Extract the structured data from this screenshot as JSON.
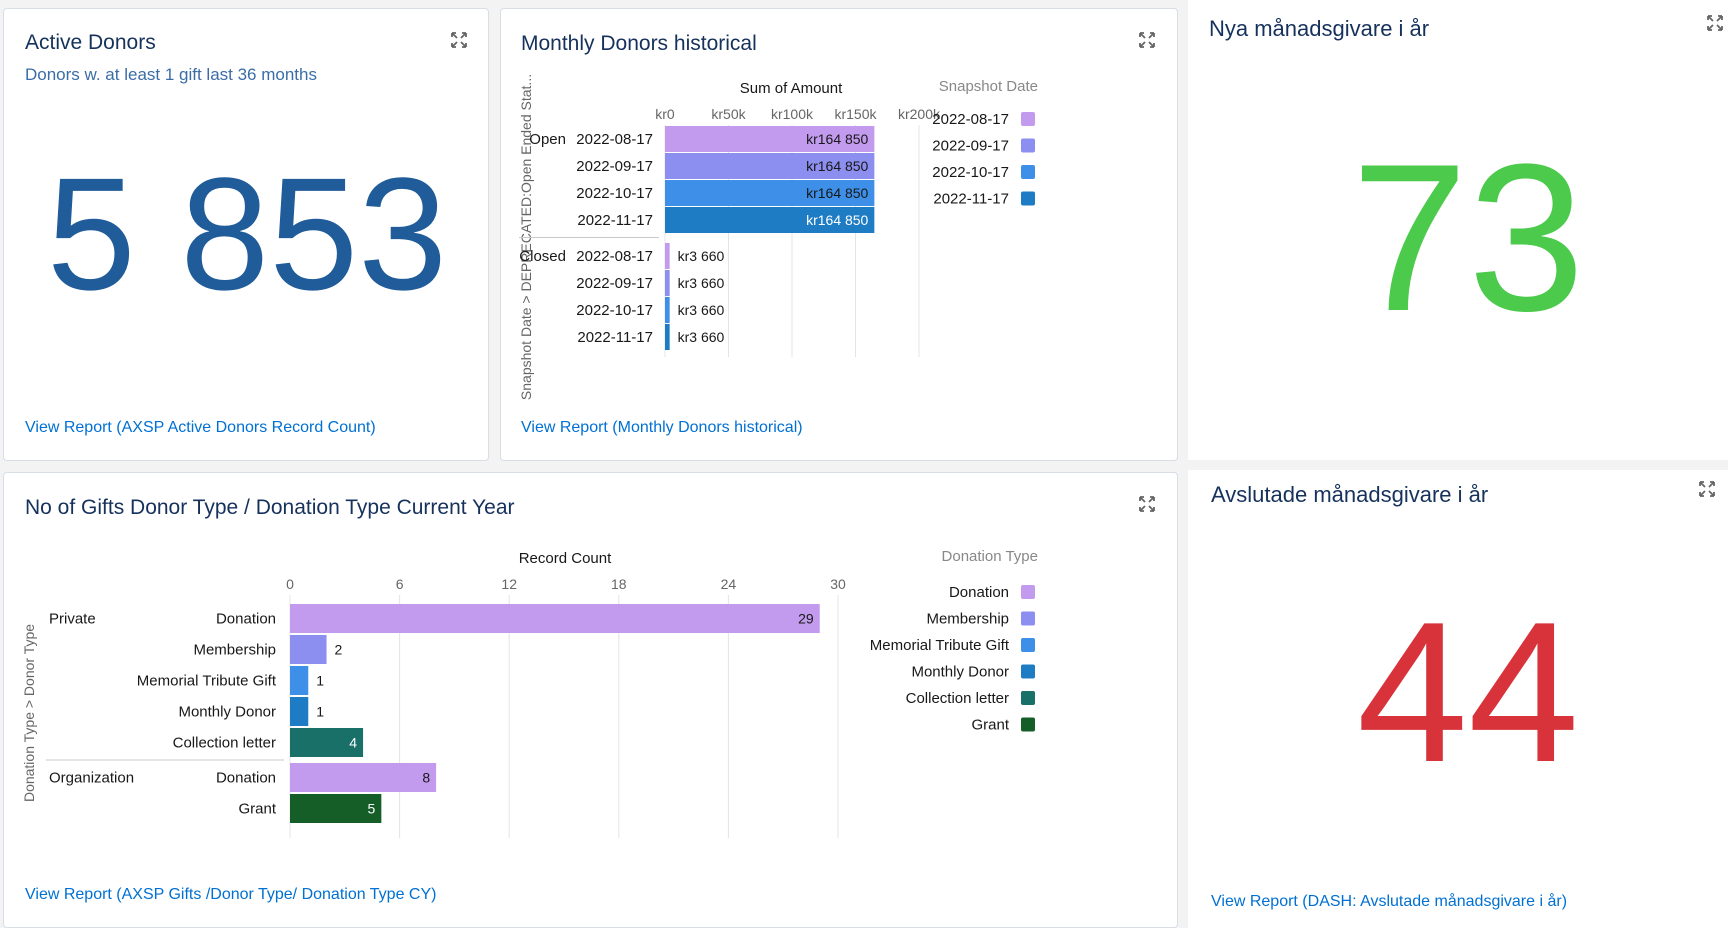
{
  "widgets": {
    "active_donors": {
      "title": "Active Donors",
      "subtitle": "Donors w. at least 1 gift last 36 months",
      "value": "5 853",
      "value_color": "#1f5c99",
      "link": "View Report (AXSP Active Donors Record Count)"
    },
    "monthly_donors": {
      "title": "Monthly Donors historical",
      "link": "View Report (Monthly Donors historical)"
    },
    "nya": {
      "title": "Nya månadsgivare i år",
      "value": "73",
      "value_color": "#4bca4b"
    },
    "gifts": {
      "title": "No of Gifts Donor Type / Donation Type Current Year",
      "link": "View Report (AXSP Gifts /Donor Type/ Donation Type CY)"
    },
    "avslutade": {
      "title": "Avslutade månadsgivare i år",
      "value": "44",
      "value_color": "#d8333a",
      "link": "View Report (DASH: Avslutade månadsgivare i år)"
    }
  },
  "chart_data": [
    {
      "id": "monthly_donors",
      "type": "bar",
      "orientation": "horizontal",
      "xlabel": "Sum of Amount",
      "ylabel": "Snapshot Date > DEPRECATED:Open Ended Stat...",
      "xticks": [
        "kr0",
        "kr50k",
        "kr100k",
        "kr150k",
        "kr200k"
      ],
      "xlim": [
        0,
        200000
      ],
      "legend_title": "Snapshot Date",
      "legend_position": "right",
      "legend": [
        {
          "label": "2022-08-17",
          "color": "#c39bee"
        },
        {
          "label": "2022-09-17",
          "color": "#8c8ff0"
        },
        {
          "label": "2022-10-17",
          "color": "#3d8fe8"
        },
        {
          "label": "2022-11-17",
          "color": "#1e7cc4"
        }
      ],
      "groups": [
        {
          "name": "Open",
          "bars": [
            {
              "label": "2022-08-17",
              "value": 164850,
              "display": "kr164 850",
              "color": "#c39bee"
            },
            {
              "label": "2022-09-17",
              "value": 164850,
              "display": "kr164 850",
              "color": "#8c8ff0"
            },
            {
              "label": "2022-10-17",
              "value": 164850,
              "display": "kr164 850",
              "color": "#3d8fe8"
            },
            {
              "label": "2022-11-17",
              "value": 164850,
              "display": "kr164 850",
              "color": "#1e7cc4"
            }
          ]
        },
        {
          "name": "Closed",
          "bars": [
            {
              "label": "2022-08-17",
              "value": 3660,
              "display": "kr3 660",
              "color": "#c39bee"
            },
            {
              "label": "2022-09-17",
              "value": 3660,
              "display": "kr3 660",
              "color": "#8c8ff0"
            },
            {
              "label": "2022-10-17",
              "value": 3660,
              "display": "kr3 660",
              "color": "#3d8fe8"
            },
            {
              "label": "2022-11-17",
              "value": 3660,
              "display": "kr3 660",
              "color": "#1e7cc4"
            }
          ]
        }
      ]
    },
    {
      "id": "gifts",
      "type": "bar",
      "orientation": "horizontal",
      "xlabel": "Record Count",
      "ylabel": "Donation Type > Donor Type",
      "xticks": [
        "0",
        "6",
        "12",
        "18",
        "24",
        "30"
      ],
      "xlim": [
        0,
        30
      ],
      "legend_title": "Donation Type",
      "legend_position": "right",
      "legend": [
        {
          "label": "Donation",
          "color": "#c39bee"
        },
        {
          "label": "Membership",
          "color": "#8c8ff0"
        },
        {
          "label": "Memorial Tribute Gift",
          "color": "#3d8fe8"
        },
        {
          "label": "Monthly Donor",
          "color": "#1e7cc4"
        },
        {
          "label": "Collection letter",
          "color": "#187068"
        },
        {
          "label": "Grant",
          "color": "#155e28"
        }
      ],
      "groups": [
        {
          "name": "Private",
          "bars": [
            {
              "label": "Donation",
              "value": 29,
              "display": "29",
              "color": "#c39bee"
            },
            {
              "label": "Membership",
              "value": 2,
              "display": "2",
              "color": "#8c8ff0"
            },
            {
              "label": "Memorial Tribute Gift",
              "value": 1,
              "display": "1",
              "color": "#3d8fe8"
            },
            {
              "label": "Monthly Donor",
              "value": 1,
              "display": "1",
              "color": "#1e7cc4"
            },
            {
              "label": "Collection letter",
              "value": 4,
              "display": "4",
              "color": "#187068"
            }
          ]
        },
        {
          "name": "Organization",
          "bars": [
            {
              "label": "Donation",
              "value": 8,
              "display": "8",
              "color": "#c39bee"
            },
            {
              "label": "Grant",
              "value": 5,
              "display": "5",
              "color": "#155e28"
            }
          ]
        }
      ]
    }
  ]
}
